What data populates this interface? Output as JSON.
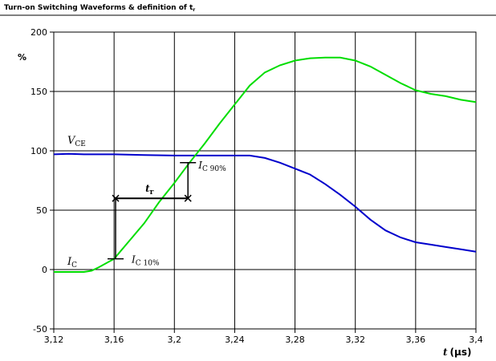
{
  "chart_data": {
    "type": "line",
    "title": "Turn-on Switching Waveforms & definition of t",
    "title_sub": "r",
    "ylabel": "%",
    "xlabel_main": "t",
    "xlabel_unit": "(µs)",
    "xlim": [
      3.12,
      3.4
    ],
    "ylim": [
      -50,
      200
    ],
    "xticks": [
      3.12,
      3.16,
      3.2,
      3.24,
      3.28,
      3.32,
      3.36,
      3.4
    ],
    "xtick_labels": [
      "3,12",
      "3,16",
      "3,2",
      "3,24",
      "3,28",
      "3,32",
      "3,36",
      "3,4"
    ],
    "yticks": [
      -50,
      0,
      50,
      100,
      150,
      200
    ],
    "ytick_labels": [
      "-50",
      "0",
      "50",
      "100",
      "150",
      "200"
    ],
    "grid": true,
    "series": [
      {
        "name": "V",
        "sub": "CE",
        "color": "#0000cc",
        "x": [
          3.12,
          3.13,
          3.14,
          3.15,
          3.16,
          3.18,
          3.2,
          3.22,
          3.24,
          3.25,
          3.26,
          3.27,
          3.28,
          3.29,
          3.3,
          3.31,
          3.32,
          3.33,
          3.34,
          3.35,
          3.36,
          3.37,
          3.38,
          3.39,
          3.4
        ],
        "y": [
          97,
          97.5,
          97,
          97,
          97,
          96.5,
          96,
          96,
          96,
          96,
          94,
          90,
          85,
          80,
          72,
          63,
          53,
          42,
          33,
          27,
          23,
          21,
          19,
          17,
          15
        ]
      },
      {
        "name": "I",
        "sub": "C",
        "color": "#00dd00",
        "x": [
          3.12,
          3.13,
          3.14,
          3.145,
          3.15,
          3.16,
          3.17,
          3.18,
          3.19,
          3.2,
          3.21,
          3.22,
          3.23,
          3.24,
          3.25,
          3.26,
          3.27,
          3.28,
          3.29,
          3.3,
          3.31,
          3.32,
          3.33,
          3.34,
          3.35,
          3.36,
          3.37,
          3.38,
          3.39,
          3.4
        ],
        "y": [
          -2,
          -2,
          -2,
          -1,
          2,
          9,
          24,
          39,
          57,
          73,
          90,
          106,
          123,
          139,
          155,
          166,
          172,
          176,
          178,
          178.5,
          178.5,
          176,
          171,
          164,
          157,
          151,
          148,
          146,
          143,
          141
        ]
      }
    ],
    "annotations": {
      "tr_label": "t",
      "tr_sub": "r",
      "ic10_main": "I",
      "ic10_sub": "C 10%",
      "ic90_main": "I",
      "ic90_sub": "C 90%",
      "ic_points": {
        "x10": 3.161,
        "y10": 9,
        "x90": 3.209,
        "y90": 90,
        "arrow_y": 60
      }
    }
  }
}
